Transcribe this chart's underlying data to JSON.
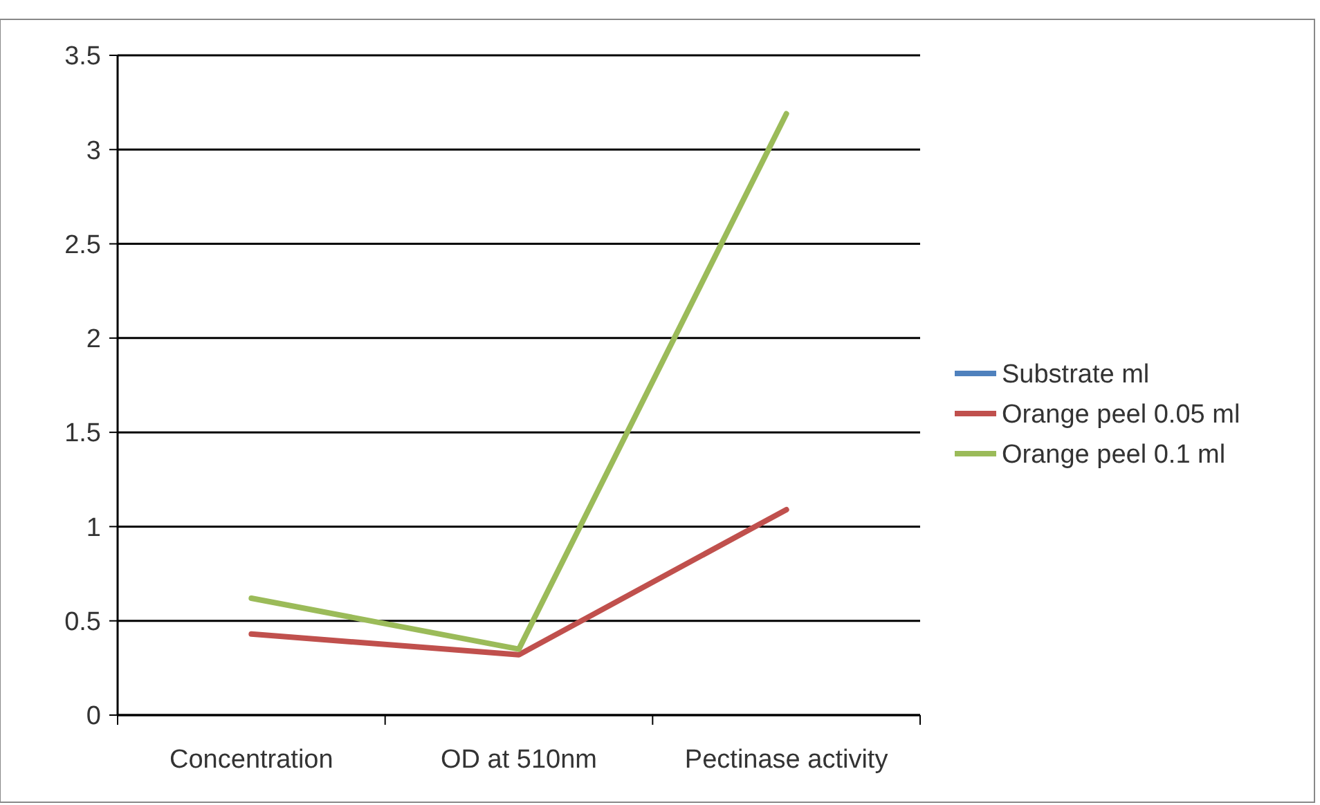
{
  "chart_data": {
    "type": "line",
    "categories": [
      "Concentration",
      "OD at 510nm",
      "Pectinase activity"
    ],
    "series": [
      {
        "name": "Substrate ml",
        "color": "#4f81bd",
        "values": [
          null,
          null,
          null
        ]
      },
      {
        "name": "Orange peel 0.05 ml",
        "color": "#c0504d",
        "values": [
          0.43,
          0.32,
          1.09
        ]
      },
      {
        "name": "Orange peel 0.1 ml",
        "color": "#9bbb59",
        "values": [
          0.62,
          0.35,
          3.19
        ]
      }
    ],
    "ylim": [
      0,
      3.5
    ],
    "yticks": [
      0,
      0.5,
      1,
      1.5,
      2,
      2.5,
      3,
      3.5
    ],
    "grid": "y",
    "legend": "right",
    "marker": "none",
    "line_style": "solid"
  }
}
